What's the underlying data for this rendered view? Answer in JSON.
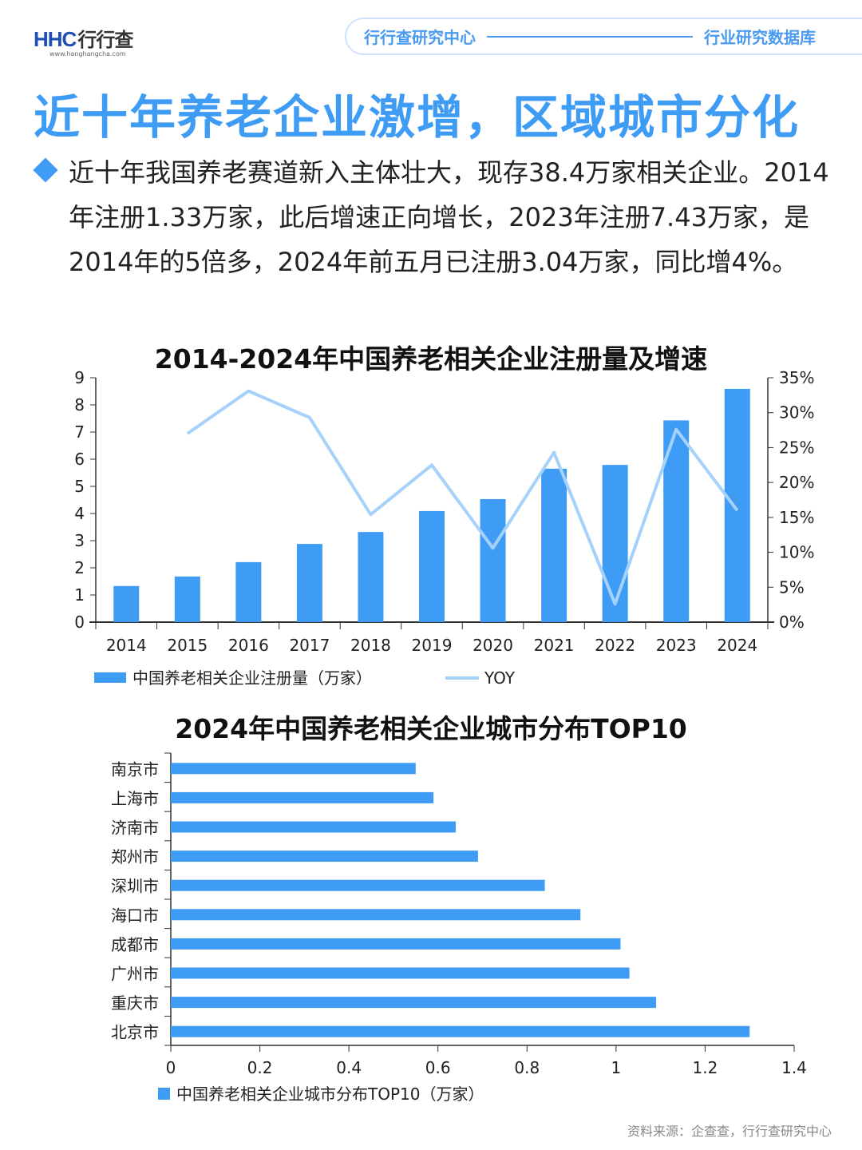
{
  "header": {
    "logo_text": "HHC",
    "logo_cn": "行行查",
    "logo_url": "www.hanghangcha.com",
    "left_label": "行行查研究中心",
    "right_label": "行业研究数据库"
  },
  "title": "近十年养老企业激增，区域城市分化",
  "paragraph": "近十年我国养老赛道新入主体壮大，现存38.4万家相关企业。2014年注册1.33万家，此后增速正向增长，2023年注册7.43万家，是2014年的5倍多，2024年前五月已注册3.04万家，同比增4%。",
  "colors": {
    "accent": "#3f9cf5",
    "bar": "#3f9cf5",
    "line": "#a6d1fb"
  },
  "chart_data": [
    {
      "type": "bar+line",
      "title": "2014-2024年中国养老相关企业注册量及增速",
      "categories": [
        "2014",
        "2015",
        "2016",
        "2017",
        "2018",
        "2019",
        "2020",
        "2021",
        "2022",
        "2023",
        "2024"
      ],
      "series": [
        {
          "name": "中国养老相关企业注册量（万家）",
          "type": "bar",
          "axis": "left",
          "values": [
            1.33,
            1.68,
            2.21,
            2.88,
            3.32,
            4.09,
            4.53,
            5.65,
            5.79,
            7.43,
            8.59
          ]
        },
        {
          "name": "YOY",
          "type": "line",
          "axis": "right",
          "values": [
            null,
            27.0,
            33.1,
            29.3,
            15.4,
            22.5,
            10.6,
            24.3,
            2.6,
            27.6,
            16.0
          ]
        }
      ],
      "ylim": [
        0,
        9
      ],
      "yticks": [
        "0",
        "1",
        "2",
        "3",
        "4",
        "5",
        "6",
        "7",
        "8",
        "9"
      ],
      "y2lim": [
        0,
        35
      ],
      "y2ticks": [
        "0%",
        "5%",
        "10%",
        "15%",
        "20%",
        "25%",
        "30%",
        "35%"
      ],
      "legend": "bottom",
      "grid": false
    },
    {
      "type": "hbar",
      "title": "2024年中国养老相关企业城市分布TOP10",
      "categories": [
        "南京市",
        "上海市",
        "济南市",
        "郑州市",
        "深圳市",
        "海口市",
        "成都市",
        "广州市",
        "重庆市",
        "北京市"
      ],
      "values": [
        0.55,
        0.59,
        0.64,
        0.69,
        0.84,
        0.92,
        1.01,
        1.03,
        1.09,
        1.3
      ],
      "series_name": "中国养老相关企业城市分布TOP10（万家）",
      "xlim": [
        0,
        1.4
      ],
      "xticks": [
        "0",
        "0.2",
        "0.4",
        "0.6",
        "0.8",
        "1",
        "1.2",
        "1.4"
      ],
      "legend": "bottom",
      "grid": false
    }
  ],
  "source": "资料来源：企查查，行行查研究中心"
}
